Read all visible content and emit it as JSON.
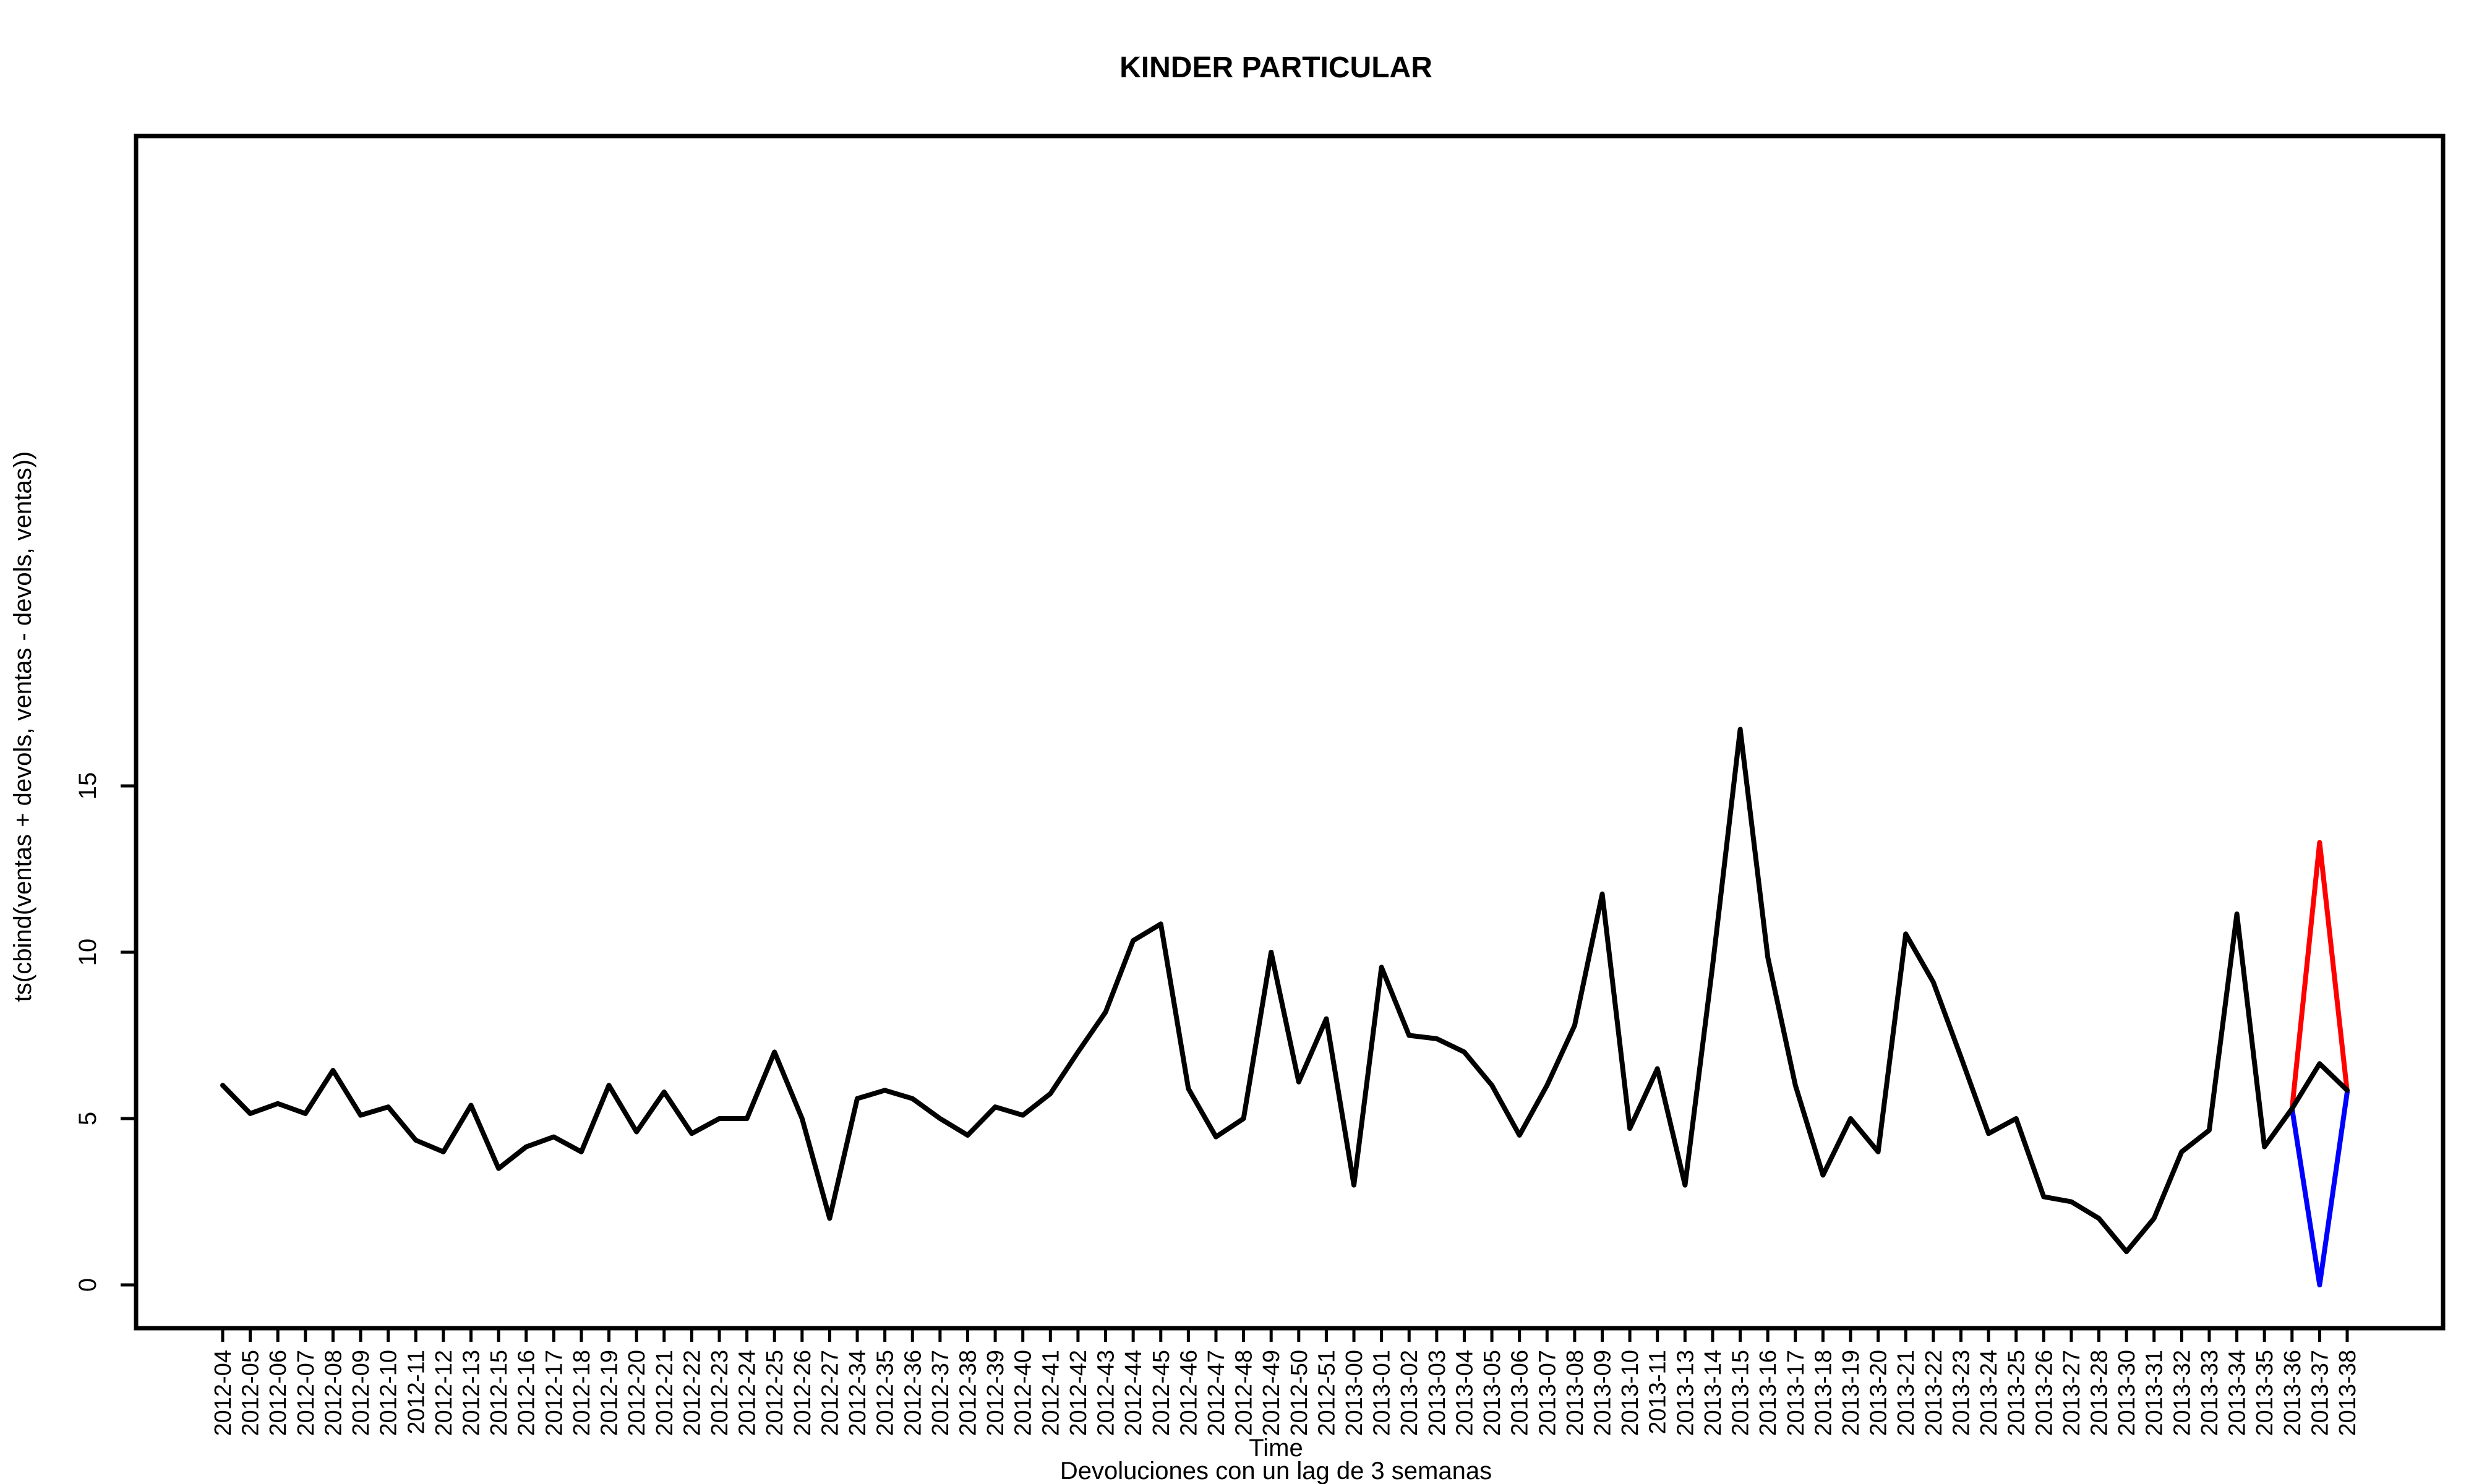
{
  "chart_data": {
    "type": "line",
    "title": "KINDER PARTICULAR",
    "xlabel": "Time",
    "ylabel": "ts(cbind(ventas + devols, ventas - devols, ventas))",
    "subtitle": "Devoluciones con un lag de 3 semanas",
    "ylim": [
      0,
      17
    ],
    "yticks": [
      0,
      5,
      10,
      15
    ],
    "grid": false,
    "legend": "none",
    "categories": [
      "2012-04",
      "2012-05",
      "2012-06",
      "2012-07",
      "2012-08",
      "2012-09",
      "2012-10",
      "2012-11",
      "2012-12",
      "2012-13",
      "2012-15",
      "2012-16",
      "2012-17",
      "2012-18",
      "2012-19",
      "2012-20",
      "2012-21",
      "2012-22",
      "2012-23",
      "2012-24",
      "2012-25",
      "2012-26",
      "2012-27",
      "2012-34",
      "2012-35",
      "2012-36",
      "2012-37",
      "2012-38",
      "2012-39",
      "2012-40",
      "2012-41",
      "2012-42",
      "2012-43",
      "2012-44",
      "2012-45",
      "2012-46",
      "2012-47",
      "2012-48",
      "2012-49",
      "2012-50",
      "2012-51",
      "2013-00",
      "2013-01",
      "2013-02",
      "2013-03",
      "2013-04",
      "2013-05",
      "2013-06",
      "2013-07",
      "2013-08",
      "2013-09",
      "2013-10",
      "2013-11",
      "2013-13",
      "2013-14",
      "2013-15",
      "2013-16",
      "2013-17",
      "2013-18",
      "2013-19",
      "2013-20",
      "2013-21",
      "2013-22",
      "2013-23",
      "2013-24",
      "2013-25",
      "2013-26",
      "2013-27",
      "2013-28",
      "2013-30",
      "2013-31",
      "2013-32",
      "2013-33",
      "2013-34",
      "2013-35",
      "2013-36",
      "2013-37",
      "2013-38"
    ],
    "series": [
      {
        "color": "#ff0000",
        "values": [
          null,
          null,
          null,
          null,
          null,
          null,
          null,
          null,
          null,
          null,
          null,
          null,
          null,
          null,
          null,
          null,
          null,
          null,
          null,
          null,
          null,
          null,
          null,
          null,
          null,
          null,
          null,
          null,
          null,
          null,
          null,
          null,
          null,
          null,
          null,
          null,
          null,
          null,
          null,
          null,
          null,
          null,
          null,
          null,
          null,
          null,
          null,
          null,
          null,
          null,
          null,
          null,
          null,
          null,
          null,
          null,
          null,
          null,
          null,
          null,
          null,
          null,
          null,
          null,
          null,
          null,
          null,
          null,
          null,
          null,
          null,
          null,
          null,
          null,
          null,
          5.3,
          13.3,
          5.8
        ]
      },
      {
        "color": "#0000ff",
        "values": [
          null,
          null,
          null,
          null,
          null,
          null,
          null,
          null,
          null,
          null,
          null,
          null,
          null,
          null,
          null,
          null,
          null,
          null,
          null,
          null,
          null,
          null,
          null,
          null,
          null,
          null,
          null,
          null,
          null,
          null,
          null,
          null,
          null,
          null,
          null,
          null,
          null,
          null,
          null,
          null,
          null,
          null,
          null,
          null,
          null,
          null,
          null,
          null,
          null,
          null,
          null,
          null,
          null,
          null,
          null,
          null,
          null,
          null,
          null,
          null,
          null,
          null,
          null,
          null,
          null,
          null,
          null,
          null,
          null,
          null,
          null,
          null,
          null,
          null,
          null,
          5.3,
          0,
          5.8
        ]
      },
      {
        "color": "#000000",
        "values": [
          6.0,
          5.15,
          5.45,
          5.15,
          6.45,
          5.1,
          5.35,
          4.35,
          4.0,
          5.4,
          3.5,
          4.15,
          4.45,
          4.0,
          6.0,
          4.6,
          5.8,
          4.55,
          5.0,
          5.0,
          7.0,
          5.0,
          2.0,
          5.6,
          5.85,
          5.6,
          5.0,
          4.5,
          5.35,
          5.1,
          5.75,
          7.0,
          8.2,
          10.35,
          10.85,
          5.9,
          4.45,
          5.0,
          10.0,
          6.1,
          8.0,
          3.0,
          9.55,
          7.5,
          7.4,
          7.0,
          6.0,
          4.5,
          6.0,
          7.8,
          11.75,
          4.7,
          6.5,
          3.0,
          9.6,
          16.7,
          9.85,
          6.0,
          3.3,
          5.0,
          4.0,
          10.55,
          9.1,
          6.85,
          4.55,
          5.0,
          2.65,
          2.5,
          2.0,
          1.0,
          2.0,
          4.0,
          4.65,
          11.15,
          4.15,
          5.3,
          6.65,
          5.85
        ]
      }
    ]
  }
}
